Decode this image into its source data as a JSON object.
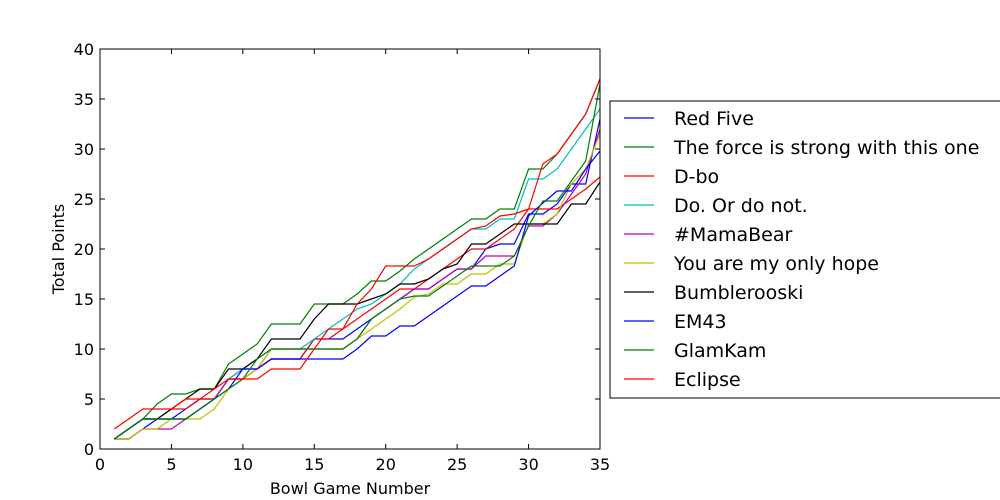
{
  "chart_data": {
    "type": "line",
    "title": "",
    "xlabel": "Bowl Game Number",
    "ylabel": "Total Points",
    "xlim": [
      0,
      35
    ],
    "ylim": [
      0,
      40
    ],
    "xticks": [
      0,
      5,
      10,
      15,
      20,
      25,
      30,
      35
    ],
    "yticks": [
      0,
      5,
      10,
      15,
      20,
      25,
      30,
      35,
      40
    ],
    "grid": false,
    "legend_position": "right",
    "x": [
      1,
      2,
      3,
      4,
      5,
      6,
      7,
      8,
      9,
      10,
      11,
      12,
      13,
      14,
      15,
      16,
      17,
      18,
      19,
      20,
      21,
      22,
      23,
      24,
      25,
      26,
      27,
      28,
      29,
      30,
      31,
      32,
      33,
      34,
      35
    ],
    "series": [
      {
        "name": "Red Five",
        "color": "#0000ff",
        "values": [
          1,
          1,
          2,
          3,
          3,
          4,
          5,
          5,
          7,
          8,
          8,
          9,
          9,
          9,
          11,
          11,
          11,
          12,
          13,
          14,
          15,
          16,
          16,
          17,
          18,
          18,
          20,
          20.5,
          20.5,
          23.5,
          23.5,
          24.5,
          26.5,
          26.5,
          33
        ]
      },
      {
        "name": "The force is strong with this one",
        "color": "#008000",
        "values": [
          1,
          2,
          3,
          4.5,
          5.5,
          5.5,
          6,
          6,
          8.5,
          9.5,
          10.5,
          12.5,
          12.5,
          12.5,
          14.5,
          14.5,
          14.5,
          15.5,
          16.8,
          16.8,
          17.8,
          19,
          20,
          21,
          22,
          23,
          23,
          24,
          24,
          28,
          28,
          29.5,
          31.5,
          33.5,
          37
        ]
      },
      {
        "name": "D-bo",
        "color": "#ff0000",
        "values": [
          1,
          2,
          3,
          3,
          4,
          4,
          5,
          5,
          7,
          7,
          8,
          9,
          9,
          9,
          11,
          11,
          12,
          13,
          14,
          15,
          16,
          16,
          17,
          18,
          19,
          20,
          20,
          21,
          22,
          24,
          24,
          24,
          25,
          26,
          27.2
        ]
      },
      {
        "name": "Do. Or do not.",
        "color": "#00bfbf",
        "values": [
          1,
          2,
          3,
          3,
          3,
          3,
          4,
          5,
          7,
          8,
          9,
          10,
          10,
          10,
          11,
          12,
          13,
          14,
          14.5,
          15.5,
          16.5,
          18,
          19,
          20,
          21,
          22,
          22,
          23,
          23,
          27,
          27,
          28,
          30,
          32,
          34
        ]
      },
      {
        "name": "#MamaBear",
        "color": "#bf00bf",
        "values": [
          1,
          1,
          2,
          2,
          2,
          3,
          4,
          5,
          7,
          7,
          8,
          10,
          10,
          10,
          10,
          10,
          10,
          11,
          13,
          14,
          15,
          16,
          16,
          17,
          18,
          18,
          19.3,
          19.3,
          19.3,
          22.3,
          22.3,
          23.5,
          25.5,
          27.5,
          32
        ]
      },
      {
        "name": "You are my only hope",
        "color": "#bfbf00",
        "values": [
          1,
          1,
          2,
          2,
          3,
          3,
          3,
          4,
          6,
          7,
          8,
          10,
          10,
          10,
          10,
          10,
          10,
          11,
          12,
          13,
          14,
          15.2,
          15.5,
          16.5,
          16.5,
          17.5,
          17.5,
          18.5,
          18.5,
          22.5,
          22.5,
          23.5,
          26.5,
          28,
          31.5
        ]
      },
      {
        "name": "Bumblerooski",
        "color": "#000000",
        "values": [
          1,
          2,
          3,
          3,
          4,
          5,
          6,
          6,
          8,
          8,
          9,
          11,
          11,
          11,
          13,
          14.5,
          14.5,
          14.5,
          15,
          15.5,
          16.5,
          16.5,
          17,
          18,
          18.5,
          20.5,
          20.5,
          21.5,
          22.5,
          22.5,
          22.5,
          22.5,
          24.5,
          24.5,
          26.7
        ]
      },
      {
        "name": "EM43",
        "color": "#0000ff",
        "values": [
          1,
          2,
          3,
          3,
          3,
          3,
          4,
          5,
          6,
          8,
          8,
          9,
          9,
          9,
          9,
          9,
          9,
          10,
          11.3,
          11.3,
          12.3,
          12.3,
          13.3,
          14.3,
          15.3,
          16.3,
          16.3,
          17.3,
          18.3,
          23.3,
          24.6,
          25.8,
          25.8,
          28,
          29.8
        ]
      },
      {
        "name": "GlamKam",
        "color": "#008000",
        "values": [
          1,
          2,
          3,
          3,
          3,
          3,
          4,
          5,
          6,
          7,
          9,
          10,
          10,
          10,
          10,
          10,
          10,
          11,
          13,
          14,
          15,
          15.3,
          15.3,
          16.3,
          17.3,
          18.3,
          18.3,
          18.3,
          19.3,
          22.3,
          24.8,
          24.8,
          26.8,
          28.8,
          36.5
        ]
      },
      {
        "name": "Eclipse",
        "color": "#ff0000",
        "values": [
          2,
          3,
          4,
          4,
          4,
          5,
          5,
          6,
          7,
          7,
          7,
          8,
          8,
          8,
          10,
          12,
          12,
          14.5,
          16,
          18.3,
          18.3,
          18.3,
          19,
          20,
          21,
          22,
          22.3,
          23.3,
          23.5,
          24,
          28.5,
          29.5,
          31.5,
          33.5,
          37
        ]
      }
    ]
  }
}
